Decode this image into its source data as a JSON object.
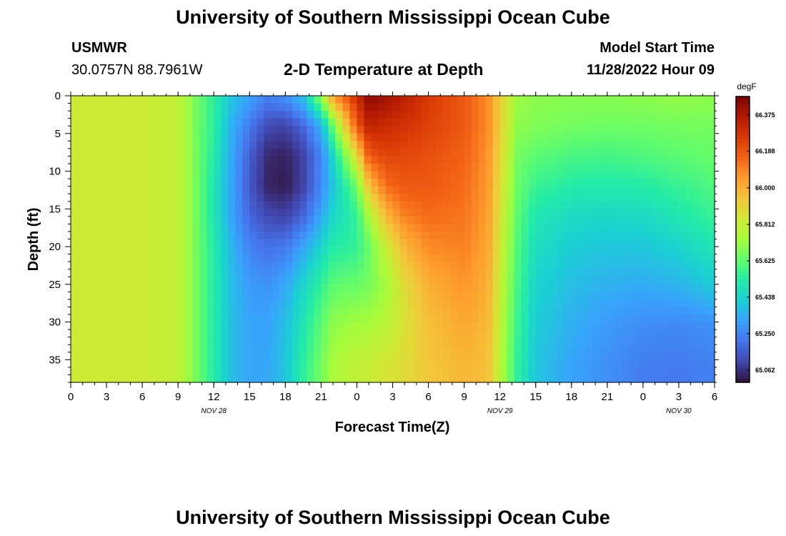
{
  "page": {
    "title": "University of Southern Mississippi Ocean Cube",
    "footer_title": "University of Southern Mississippi Ocean Cube"
  },
  "header": {
    "station": "USMWR",
    "coordinates": "30.0757N  88.7961W",
    "chart_title": "2-D Temperature at Depth",
    "model_label": "Model Start Time",
    "model_time": "11/28/2022 Hour 09"
  },
  "chart_data": {
    "type": "heatmap",
    "title": "2-D Temperature at Depth",
    "xlabel": "Forecast Time(Z)",
    "ylabel": "Depth (ft)",
    "x_range_hours": [
      0,
      54
    ],
    "x_ticks": [
      "0",
      "3",
      "6",
      "9",
      "12",
      "15",
      "18",
      "21",
      "0",
      "3",
      "6",
      "9",
      "12",
      "15",
      "18",
      "21",
      "0",
      "3",
      "6"
    ],
    "date_labels": [
      {
        "label": "NOV 28",
        "at_tick": 4
      },
      {
        "label": "NOV 29",
        "at_tick": 12
      },
      {
        "label": "NOV 30",
        "at_tick": 17
      }
    ],
    "y_range": [
      0,
      38
    ],
    "y_ticks": [
      0,
      5,
      10,
      15,
      20,
      25,
      30,
      35
    ],
    "y_inverted": true,
    "colorbar": {
      "unit": "degF",
      "min": 65.0,
      "max": 66.47,
      "ticks": [
        "66.375",
        "66.188",
        "66.000",
        "65.812",
        "65.625",
        "65.438",
        "65.250",
        "65.062"
      ],
      "colors": [
        "#30123b",
        "#4145ab",
        "#4675ed",
        "#39a2fc",
        "#1bcfd4",
        "#24eca6",
        "#61fc6c",
        "#a4fc3b",
        "#d1e834",
        "#f3c63a",
        "#fe9b2d",
        "#f36315",
        "#d93806",
        "#b11901",
        "#7a0403"
      ]
    },
    "rows_depth_ft": [
      0,
      4,
      8,
      12,
      16,
      20,
      25,
      30,
      36
    ],
    "columns_hour": [
      0,
      6,
      9,
      10.5,
      12,
      13.5,
      15,
      16.5,
      18,
      19.5,
      21,
      22,
      24,
      25,
      26.5,
      28,
      30,
      33,
      35,
      36,
      37.5,
      39,
      42,
      45,
      48,
      51,
      54
    ],
    "values_degF": [
      [
        65.83,
        65.83,
        65.8,
        65.66,
        65.54,
        65.4,
        65.32,
        65.24,
        65.28,
        65.4,
        65.72,
        66.05,
        66.3,
        66.44,
        66.4,
        66.34,
        66.26,
        66.18,
        66.08,
        65.92,
        65.72,
        65.7,
        65.69,
        65.69,
        65.7,
        65.71,
        65.7
      ],
      [
        65.83,
        65.83,
        65.8,
        65.66,
        65.54,
        65.35,
        65.22,
        65.12,
        65.1,
        65.18,
        65.35,
        65.65,
        66.18,
        66.33,
        66.3,
        66.28,
        66.24,
        66.18,
        66.08,
        65.92,
        65.7,
        65.68,
        65.66,
        65.65,
        65.65,
        65.66,
        65.66
      ],
      [
        65.83,
        65.83,
        65.8,
        65.66,
        65.52,
        65.33,
        65.16,
        65.05,
        65.03,
        65.1,
        65.25,
        65.45,
        65.88,
        66.18,
        66.23,
        66.22,
        66.2,
        66.16,
        66.06,
        65.9,
        65.66,
        65.62,
        65.59,
        65.58,
        65.6,
        65.62,
        65.64
      ],
      [
        65.83,
        65.83,
        65.8,
        65.66,
        65.5,
        65.32,
        65.15,
        65.04,
        65.02,
        65.1,
        65.26,
        65.4,
        65.65,
        65.95,
        66.14,
        66.18,
        66.18,
        66.14,
        66.05,
        65.88,
        65.64,
        65.56,
        65.52,
        65.51,
        65.52,
        65.56,
        65.6
      ],
      [
        65.83,
        65.83,
        65.8,
        65.66,
        65.5,
        65.32,
        65.18,
        65.12,
        65.1,
        65.18,
        65.33,
        65.45,
        65.55,
        65.75,
        65.98,
        66.1,
        66.14,
        66.12,
        66.04,
        65.86,
        65.62,
        65.5,
        65.46,
        65.45,
        65.46,
        65.5,
        65.56
      ],
      [
        65.83,
        65.83,
        65.8,
        65.66,
        65.52,
        65.36,
        65.24,
        65.2,
        65.22,
        65.32,
        65.44,
        65.52,
        65.55,
        65.64,
        65.82,
        65.98,
        66.08,
        66.1,
        66.02,
        65.84,
        65.6,
        65.47,
        65.42,
        65.4,
        65.4,
        65.44,
        65.5
      ],
      [
        65.83,
        65.83,
        65.8,
        65.66,
        65.52,
        65.38,
        65.3,
        65.28,
        65.33,
        65.44,
        65.55,
        65.62,
        65.64,
        65.66,
        65.74,
        65.88,
        66.0,
        66.06,
        66.0,
        65.82,
        65.58,
        65.44,
        65.38,
        65.35,
        65.34,
        65.36,
        65.42
      ],
      [
        65.83,
        65.83,
        65.8,
        65.66,
        65.52,
        65.38,
        65.32,
        65.32,
        65.38,
        65.5,
        65.62,
        65.7,
        65.73,
        65.74,
        65.78,
        65.86,
        65.96,
        66.02,
        65.98,
        65.8,
        65.56,
        65.42,
        65.35,
        65.3,
        65.27,
        65.26,
        65.28
      ],
      [
        65.83,
        65.83,
        65.8,
        65.66,
        65.52,
        65.38,
        65.32,
        65.33,
        65.4,
        65.54,
        65.66,
        65.75,
        65.8,
        65.82,
        65.85,
        65.88,
        65.94,
        65.98,
        65.96,
        65.78,
        65.54,
        65.4,
        65.32,
        65.27,
        65.23,
        65.22,
        65.24
      ]
    ]
  }
}
